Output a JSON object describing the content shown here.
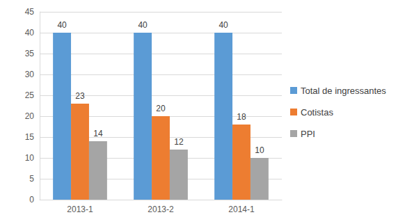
{
  "chart_data": {
    "type": "bar",
    "categories": [
      "2013-1",
      "2013-2",
      "2014-1"
    ],
    "series": [
      {
        "name": "Total de ingressantes",
        "color": "#5b9bd5",
        "values": [
          40,
          40,
          40
        ]
      },
      {
        "name": "Cotistas",
        "color": "#ed7d31",
        "values": [
          23,
          20,
          18
        ]
      },
      {
        "name": "PPI",
        "color": "#a5a5a5",
        "values": [
          14,
          12,
          10
        ]
      }
    ],
    "ylim": [
      0,
      45
    ],
    "yticks": [
      0,
      5,
      10,
      15,
      20,
      25,
      30,
      35,
      40,
      45
    ],
    "grid": true,
    "legend": "right",
    "data_labels": true
  }
}
